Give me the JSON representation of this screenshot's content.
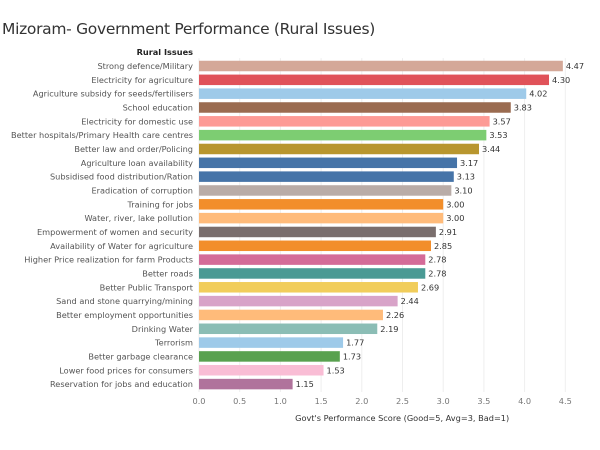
{
  "chart_data": {
    "type": "bar",
    "orientation": "horizontal",
    "title": "Mizoram- Government Performance (Rural Issues)",
    "row_header": "Rural Issues",
    "xlabel": "Govt's Performance Score (Good=5, Avg=3, Bad=1)",
    "xlim": [
      0,
      4.5
    ],
    "xticks": [
      "0.0",
      "0.5",
      "1.0",
      "1.5",
      "2.0",
      "2.5",
      "3.0",
      "3.5",
      "4.0",
      "4.5"
    ],
    "grid": true,
    "categories": [
      "Strong defence/Military",
      "Electricity for agriculture",
      "Agriculture subsidy for seeds/fertilisers",
      "School education",
      "Electricity for domestic use",
      "Better  hospitals/Primary Health care centres",
      "Better law and order/Policing",
      "Agriculture loan availability",
      "Subsidised food distribution/Ration",
      "Eradication of corruption",
      "Training for jobs",
      "Water, river, lake pollution",
      "Empowerment of women and security",
      "Availability of Water for agriculture",
      "Higher Price realization for farm Products",
      "Better roads",
      "Better Public Transport",
      "Sand and stone quarrying/mining",
      "Better employment opportunities",
      "Drinking Water",
      "Terrorism",
      "Better garbage clearance",
      "Lower food prices for consumers",
      "Reservation for jobs and education"
    ],
    "values": [
      4.47,
      4.3,
      4.02,
      3.83,
      3.57,
      3.53,
      3.44,
      3.17,
      3.13,
      3.1,
      3.0,
      3.0,
      2.91,
      2.85,
      2.78,
      2.78,
      2.69,
      2.44,
      2.26,
      2.19,
      1.77,
      1.73,
      1.53,
      1.15
    ],
    "value_labels": [
      "4.47",
      "4.30",
      "4.02",
      "3.83",
      "3.57",
      "3.53",
      "3.44",
      "3.17",
      "3.13",
      "3.10",
      "3.00",
      "3.00",
      "2.91",
      "2.85",
      "2.78",
      "2.78",
      "2.69",
      "2.44",
      "2.26",
      "2.19",
      "1.77",
      "1.73",
      "1.53",
      "1.15"
    ],
    "colors": [
      "#d4a898",
      "#e05259",
      "#9ecae9",
      "#9a6b50",
      "#fd9a95",
      "#7dcd72",
      "#b8962e",
      "#4674a8",
      "#4674a8",
      "#b9aca7",
      "#f28e2b",
      "#ffbb7a",
      "#7a6e6d",
      "#f28e2b",
      "#d46b98",
      "#4a9a94",
      "#f1cd5b",
      "#d8a3c8",
      "#ffbb7a",
      "#8bbdb5",
      "#9ecae9",
      "#59a14f",
      "#f9bdd5",
      "#b0739c"
    ]
  }
}
